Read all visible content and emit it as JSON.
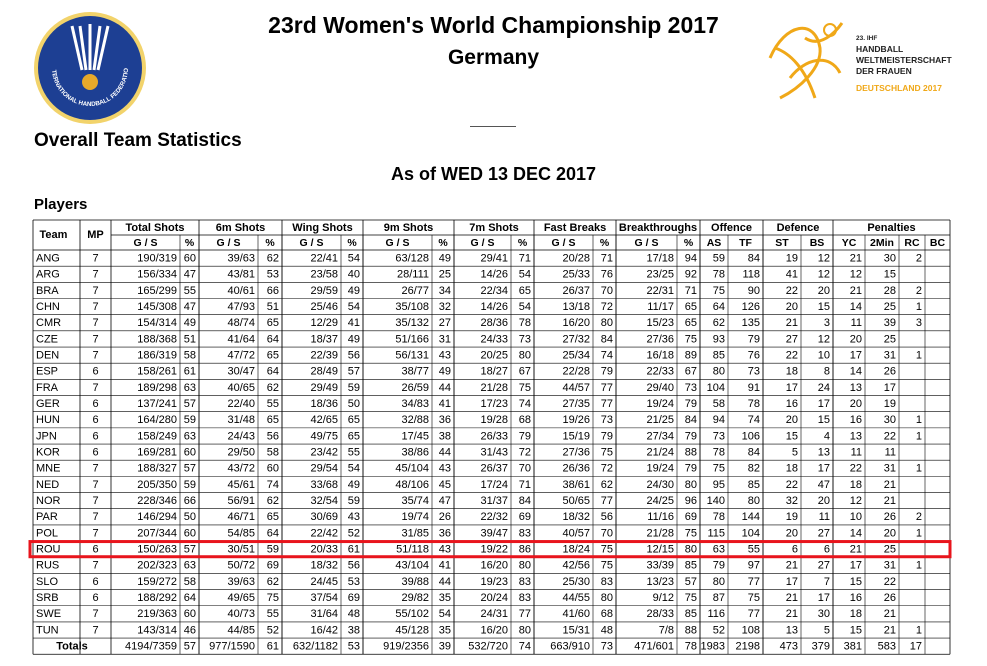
{
  "header": {
    "title": "23rd Women's World Championship 2017",
    "subtitle": "Germany",
    "left_logo_text": "INTERNATIONAL HANDBALL FEDERATION",
    "right_logo_lines": [
      "23. IHF",
      "HANDBALL",
      "WELTMEISTERSCHAFT",
      "DER FRAUEN",
      "DEUTSCHLAND 2017"
    ]
  },
  "section_title": "Overall Team Statistics",
  "date_line": "As of WED 13 DEC 2017",
  "players_label": "Players",
  "table": {
    "group_headers": [
      "Team",
      "MP",
      "Total Shots",
      "6m Shots",
      "Wing Shots",
      "9m Shots",
      "7m Shots",
      "Fast Breaks",
      "Breakthroughs",
      "Offence",
      "Defence",
      "Penalties"
    ],
    "columns": [
      "G / S",
      "%",
      "G / S",
      "%",
      "G / S",
      "%",
      "G / S",
      "%",
      "G / S",
      "%",
      "G / S",
      "%",
      "G / S",
      "%",
      "AS",
      "TF",
      "ST",
      "BS",
      "YC",
      "2Min",
      "RC",
      "BC"
    ],
    "rows": [
      [
        "ANG",
        7,
        "190/319",
        60,
        "39/63",
        62,
        "22/41",
        54,
        "63/128",
        49,
        "29/41",
        71,
        "20/28",
        71,
        "17/18",
        94,
        59,
        84,
        19,
        12,
        21,
        30,
        2,
        null
      ],
      [
        "ARG",
        7,
        "156/334",
        47,
        "43/81",
        53,
        "23/58",
        40,
        "28/111",
        25,
        "14/26",
        54,
        "25/33",
        76,
        "23/25",
        92,
        78,
        118,
        41,
        12,
        12,
        15,
        null,
        null
      ],
      [
        "BRA",
        7,
        "165/299",
        55,
        "40/61",
        66,
        "29/59",
        49,
        "26/77",
        34,
        "22/34",
        65,
        "26/37",
        70,
        "22/31",
        71,
        75,
        90,
        22,
        20,
        21,
        28,
        2,
        null
      ],
      [
        "CHN",
        7,
        "145/308",
        47,
        "47/93",
        51,
        "25/46",
        54,
        "35/108",
        32,
        "14/26",
        54,
        "13/18",
        72,
        "11/17",
        65,
        64,
        126,
        20,
        15,
        14,
        25,
        1,
        null
      ],
      [
        "CMR",
        7,
        "154/314",
        49,
        "48/74",
        65,
        "12/29",
        41,
        "35/132",
        27,
        "28/36",
        78,
        "16/20",
        80,
        "15/23",
        65,
        62,
        135,
        21,
        3,
        11,
        39,
        3,
        null
      ],
      [
        "CZE",
        7,
        "188/368",
        51,
        "41/64",
        64,
        "18/37",
        49,
        "51/166",
        31,
        "24/33",
        73,
        "27/32",
        84,
        "27/36",
        75,
        93,
        79,
        27,
        12,
        20,
        25,
        null,
        null
      ],
      [
        "DEN",
        7,
        "186/319",
        58,
        "47/72",
        65,
        "22/39",
        56,
        "56/131",
        43,
        "20/25",
        80,
        "25/34",
        74,
        "16/18",
        89,
        85,
        76,
        22,
        10,
        17,
        31,
        1,
        null
      ],
      [
        "ESP",
        6,
        "158/261",
        61,
        "30/47",
        64,
        "28/49",
        57,
        "38/77",
        49,
        "18/27",
        67,
        "22/28",
        79,
        "22/33",
        67,
        80,
        73,
        18,
        8,
        14,
        26,
        null,
        null
      ],
      [
        "FRA",
        7,
        "189/298",
        63,
        "40/65",
        62,
        "29/49",
        59,
        "26/59",
        44,
        "21/28",
        75,
        "44/57",
        77,
        "29/40",
        73,
        104,
        91,
        17,
        24,
        13,
        17,
        null,
        null
      ],
      [
        "GER",
        6,
        "137/241",
        57,
        "22/40",
        55,
        "18/36",
        50,
        "34/83",
        41,
        "17/23",
        74,
        "27/35",
        77,
        "19/24",
        79,
        58,
        78,
        16,
        17,
        20,
        19,
        null,
        null
      ],
      [
        "HUN",
        6,
        "164/280",
        59,
        "31/48",
        65,
        "42/65",
        65,
        "32/88",
        36,
        "19/28",
        68,
        "19/26",
        73,
        "21/25",
        84,
        94,
        74,
        20,
        15,
        16,
        30,
        1,
        null
      ],
      [
        "JPN",
        6,
        "158/249",
        63,
        "24/43",
        56,
        "49/75",
        65,
        "17/45",
        38,
        "26/33",
        79,
        "15/19",
        79,
        "27/34",
        79,
        73,
        106,
        15,
        4,
        13,
        22,
        1,
        null
      ],
      [
        "KOR",
        6,
        "169/281",
        60,
        "29/50",
        58,
        "23/42",
        55,
        "38/86",
        44,
        "31/43",
        72,
        "27/36",
        75,
        "21/24",
        88,
        78,
        84,
        5,
        13,
        11,
        11,
        null,
        null
      ],
      [
        "MNE",
        7,
        "188/327",
        57,
        "43/72",
        60,
        "29/54",
        54,
        "45/104",
        43,
        "26/37",
        70,
        "26/36",
        72,
        "19/24",
        79,
        75,
        82,
        18,
        17,
        22,
        31,
        1,
        null
      ],
      [
        "NED",
        7,
        "205/350",
        59,
        "45/61",
        74,
        "33/68",
        49,
        "48/106",
        45,
        "17/24",
        71,
        "38/61",
        62,
        "24/30",
        80,
        95,
        85,
        22,
        47,
        18,
        21,
        null,
        null
      ],
      [
        "NOR",
        7,
        "228/346",
        66,
        "56/91",
        62,
        "32/54",
        59,
        "35/74",
        47,
        "31/37",
        84,
        "50/65",
        77,
        "24/25",
        96,
        140,
        80,
        32,
        20,
        12,
        21,
        null,
        null
      ],
      [
        "PAR",
        7,
        "146/294",
        50,
        "46/71",
        65,
        "30/69",
        43,
        "19/74",
        26,
        "22/32",
        69,
        "18/32",
        56,
        "11/16",
        69,
        78,
        144,
        19,
        11,
        10,
        26,
        2,
        null
      ],
      [
        "POL",
        7,
        "207/344",
        60,
        "54/85",
        64,
        "22/42",
        52,
        "31/85",
        36,
        "39/47",
        83,
        "40/57",
        70,
        "21/28",
        75,
        115,
        104,
        20,
        27,
        14,
        20,
        1,
        null
      ],
      [
        "ROU",
        6,
        "150/263",
        57,
        "30/51",
        59,
        "20/33",
        61,
        "51/118",
        43,
        "19/22",
        86,
        "18/24",
        75,
        "12/15",
        80,
        63,
        55,
        6,
        6,
        21,
        25,
        null,
        null
      ],
      [
        "RUS",
        7,
        "202/323",
        63,
        "50/72",
        69,
        "18/32",
        56,
        "43/104",
        41,
        "16/20",
        80,
        "42/56",
        75,
        "33/39",
        85,
        79,
        97,
        21,
        27,
        17,
        31,
        1,
        null
      ],
      [
        "SLO",
        6,
        "159/272",
        58,
        "39/63",
        62,
        "24/45",
        53,
        "39/88",
        44,
        "19/23",
        83,
        "25/30",
        83,
        "13/23",
        57,
        80,
        77,
        17,
        7,
        15,
        22,
        null,
        null
      ],
      [
        "SRB",
        6,
        "188/292",
        64,
        "49/65",
        75,
        "37/54",
        69,
        "29/82",
        35,
        "20/24",
        83,
        "44/55",
        80,
        "9/12",
        75,
        87,
        75,
        21,
        17,
        16,
        26,
        null,
        null
      ],
      [
        "SWE",
        7,
        "219/363",
        60,
        "40/73",
        55,
        "31/64",
        48,
        "55/102",
        54,
        "24/31",
        77,
        "41/60",
        68,
        "28/33",
        85,
        116,
        77,
        21,
        30,
        18,
        21,
        null,
        null
      ],
      [
        "TUN",
        7,
        "143/314",
        46,
        "44/85",
        52,
        "16/42",
        38,
        "45/128",
        35,
        "16/20",
        80,
        "15/31",
        48,
        "7/8",
        88,
        52,
        108,
        13,
        5,
        15,
        21,
        1,
        null
      ]
    ],
    "totals": [
      "Totals",
      "4194/7359",
      57,
      "977/1590",
      61,
      "632/1182",
      53,
      "919/2356",
      39,
      "532/720",
      74,
      "663/910",
      73,
      "471/601",
      78,
      1983,
      2198,
      473,
      379,
      381,
      583,
      17,
      null
    ],
    "highlighted_row": "ROU"
  }
}
